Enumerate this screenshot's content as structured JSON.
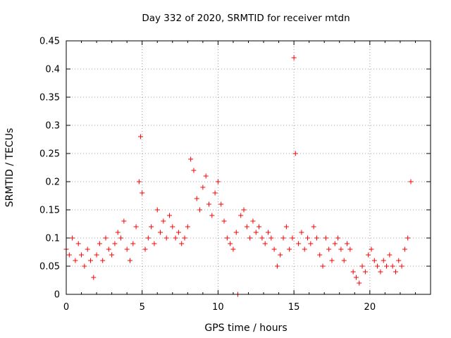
{
  "chart_data": {
    "type": "scatter",
    "title": "Day 332 of 2020, SRMTID for receiver mtdn",
    "xlabel": "GPS time / hours",
    "ylabel": "SRMTID / TECUs",
    "xlim": [
      0,
      24
    ],
    "ylim": [
      0,
      0.45
    ],
    "xticks": [
      0,
      5,
      10,
      15,
      20
    ],
    "xtick_labels": [
      "0",
      "5",
      "10",
      "15",
      "20"
    ],
    "yticks": [
      0,
      0.05,
      0.1,
      0.15,
      0.2,
      0.25,
      0.3,
      0.35,
      0.4,
      0.45
    ],
    "ytick_labels": [
      "0",
      "0.05",
      "0.1",
      "0.15",
      "0.2",
      "0.25",
      "0.3",
      "0.35",
      "0.4",
      "0.45"
    ],
    "grid": true,
    "marker": "+",
    "color": "#ff0000",
    "series": [
      {
        "name": "SRMTID",
        "x": [
          0.0,
          0.2,
          0.4,
          0.6,
          0.8,
          1.0,
          1.2,
          1.4,
          1.6,
          1.8,
          2.0,
          2.2,
          2.4,
          2.6,
          2.8,
          3.0,
          3.2,
          3.4,
          3.6,
          3.8,
          4.0,
          4.2,
          4.4,
          4.6,
          4.8,
          4.9,
          5.0,
          5.2,
          5.4,
          5.6,
          5.8,
          6.0,
          6.2,
          6.4,
          6.6,
          6.8,
          7.0,
          7.2,
          7.4,
          7.6,
          7.8,
          8.0,
          8.2,
          8.4,
          8.6,
          8.8,
          9.0,
          9.2,
          9.4,
          9.6,
          9.8,
          10.0,
          10.2,
          10.4,
          10.6,
          10.8,
          11.0,
          11.2,
          11.3,
          11.5,
          11.7,
          11.9,
          12.1,
          12.3,
          12.5,
          12.7,
          12.9,
          13.1,
          13.3,
          13.5,
          13.7,
          13.9,
          14.1,
          14.3,
          14.5,
          14.7,
          14.9,
          15.0,
          15.1,
          15.3,
          15.5,
          15.7,
          15.9,
          16.1,
          16.3,
          16.5,
          16.7,
          16.9,
          17.1,
          17.3,
          17.5,
          17.7,
          17.9,
          18.1,
          18.3,
          18.5,
          18.7,
          18.9,
          19.1,
          19.3,
          19.5,
          19.7,
          19.9,
          20.1,
          20.3,
          20.5,
          20.7,
          20.9,
          21.1,
          21.3,
          21.5,
          21.7,
          21.9,
          22.1,
          22.3,
          22.5,
          22.7
        ],
        "y": [
          0.08,
          0.07,
          0.1,
          0.06,
          0.09,
          0.07,
          0.05,
          0.08,
          0.06,
          0.03,
          0.07,
          0.09,
          0.06,
          0.1,
          0.08,
          0.07,
          0.09,
          0.11,
          0.1,
          0.13,
          0.08,
          0.06,
          0.09,
          0.12,
          0.2,
          0.28,
          0.18,
          0.08,
          0.1,
          0.12,
          0.09,
          0.15,
          0.11,
          0.13,
          0.1,
          0.14,
          0.12,
          0.1,
          0.11,
          0.09,
          0.1,
          0.12,
          0.24,
          0.22,
          0.17,
          0.15,
          0.19,
          0.21,
          0.16,
          0.14,
          0.18,
          0.2,
          0.16,
          0.13,
          0.1,
          0.09,
          0.08,
          0.11,
          0.0,
          0.14,
          0.15,
          0.12,
          0.1,
          0.13,
          0.11,
          0.12,
          0.1,
          0.09,
          0.11,
          0.1,
          0.08,
          0.05,
          0.07,
          0.1,
          0.12,
          0.08,
          0.1,
          0.42,
          0.25,
          0.09,
          0.11,
          0.08,
          0.1,
          0.09,
          0.12,
          0.1,
          0.07,
          0.05,
          0.1,
          0.08,
          0.06,
          0.09,
          0.1,
          0.08,
          0.06,
          0.09,
          0.08,
          0.04,
          0.03,
          0.02,
          0.05,
          0.04,
          0.07,
          0.08,
          0.06,
          0.05,
          0.04,
          0.06,
          0.05,
          0.07,
          0.05,
          0.04,
          0.06,
          0.05,
          0.08,
          0.1,
          0.2
        ]
      }
    ]
  }
}
